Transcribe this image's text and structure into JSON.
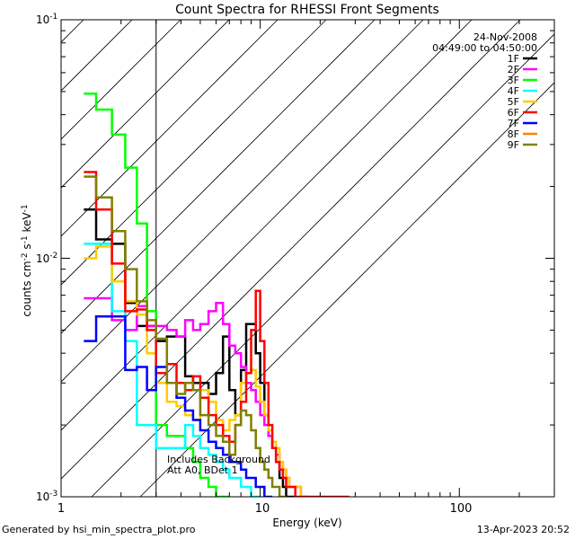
{
  "chart_data": {
    "type": "line",
    "title": "Count Spectra for RHESSI Front Segments",
    "xlabel": "Energy (keV)",
    "ylabel": "counts cm-2 s-1 keV-1",
    "x_scale": "log",
    "y_scale": "log",
    "xlim": [
      1.0,
      300.0
    ],
    "ylim": [
      0.001,
      0.1
    ],
    "x_tick_labels": [
      "1",
      "10",
      "100"
    ],
    "y_tick_labels": [
      "10-3",
      "10-2",
      "10-1"
    ],
    "date": "24-Nov-2008",
    "time_range": "04:49:00 to 04:50:00",
    "attenuator_threshold_keV": 3.0,
    "annotation_line1": "Includes Background",
    "annotation_line2": "Att A0, BDet 1",
    "edges": [
      1.3,
      1.5,
      1.8,
      2.1,
      2.4,
      2.7,
      3.0,
      3.4,
      3.8,
      4.2,
      4.6,
      5.0,
      5.5,
      6.0,
      6.5,
      7.0,
      7.5,
      8.0,
      8.5,
      9.0,
      9.5,
      10.0,
      10.5,
      11.0,
      11.5,
      12.0,
      12.5,
      13.0,
      13.5,
      14.0,
      15.0,
      16.0,
      17.0,
      18.0,
      19.0,
      20.0,
      22.0,
      24.0,
      26.0,
      28.0
    ],
    "series": [
      {
        "name": "1F",
        "color": "#000000",
        "values": [
          0.016,
          0.012,
          0.0115,
          0.0065,
          0.0052,
          0.0052,
          0.0045,
          0.0047,
          0.0047,
          0.0032,
          0.003,
          0.003,
          0.0027,
          0.0033,
          0.0047,
          0.0028,
          0.0022,
          0.0034,
          0.0053,
          0.0053,
          0.004,
          0.003,
          0.0022,
          0.0018,
          0.0016,
          0.0014,
          0.0012,
          0.0011,
          0.001,
          0.001,
          null,
          null,
          null,
          null,
          null,
          null,
          null,
          null,
          null
        ]
      },
      {
        "name": "2F",
        "color": "#ff00ff",
        "values": [
          0.0068,
          0.0068,
          0.0055,
          0.005,
          0.0063,
          0.0052,
          0.0052,
          0.005,
          0.0047,
          0.0055,
          0.005,
          0.0053,
          0.006,
          0.0065,
          0.0053,
          0.0043,
          0.004,
          0.0035,
          0.003,
          0.0028,
          0.0025,
          0.0022,
          0.002,
          0.0018,
          0.0016,
          0.0015,
          0.0014,
          0.0013,
          0.0012,
          0.0011,
          0.0011,
          0.001,
          null,
          null,
          null,
          null,
          null,
          null,
          null
        ]
      },
      {
        "name": "3F",
        "color": "#00ff00",
        "values": [
          0.049,
          0.042,
          0.033,
          0.024,
          0.014,
          0.006,
          0.002,
          0.0018,
          0.0018,
          0.0016,
          0.0014,
          0.0012,
          0.0011,
          0.001,
          0.001,
          null,
          null,
          null,
          null,
          null,
          null,
          null,
          null,
          null,
          null,
          null,
          null,
          null,
          null,
          null,
          null,
          null,
          null,
          null,
          null,
          null,
          null,
          null,
          null
        ]
      },
      {
        "name": "4F",
        "color": "#00ffff",
        "values": [
          0.0115,
          0.0115,
          0.006,
          0.0045,
          0.002,
          0.002,
          0.0016,
          0.0016,
          0.0016,
          0.002,
          0.0018,
          0.0016,
          0.0015,
          0.0014,
          0.0013,
          0.0012,
          0.0012,
          0.0011,
          0.0011,
          0.001,
          0.001,
          null,
          null,
          null,
          null,
          null,
          null,
          null,
          null,
          null,
          null,
          null,
          null,
          null,
          null,
          null,
          null,
          null,
          null
        ]
      },
      {
        "name": "5F",
        "color": "#ffcc00",
        "values": [
          0.01,
          0.0112,
          0.008,
          0.0066,
          0.0058,
          0.004,
          0.003,
          0.0025,
          0.0024,
          0.0022,
          0.0021,
          0.0028,
          0.0025,
          0.0021,
          0.0019,
          0.0021,
          0.0022,
          0.003,
          0.0033,
          0.0034,
          0.0029,
          0.0025,
          0.0022,
          0.0019,
          0.0017,
          0.0016,
          0.0014,
          0.0013,
          0.0012,
          0.0011,
          0.0011,
          0.001,
          0.001,
          null,
          null,
          null,
          null,
          null,
          null
        ]
      },
      {
        "name": "6F",
        "color": "#ff0000",
        "values": [
          0.023,
          0.016,
          0.0095,
          0.006,
          0.0061,
          0.005,
          0.0033,
          0.0036,
          0.003,
          0.0028,
          0.0032,
          0.0026,
          0.0022,
          0.002,
          0.0018,
          0.0017,
          0.002,
          0.0025,
          0.0033,
          0.005,
          0.0073,
          0.0045,
          0.003,
          0.002,
          0.0016,
          0.0014,
          0.0013,
          0.0012,
          0.0011,
          0.0011,
          0.001,
          0.001,
          0.001,
          0.001,
          0.001,
          0.001,
          0.001,
          0.001,
          0.001
        ]
      },
      {
        "name": "7F",
        "color": "#0000ff",
        "values": [
          0.0045,
          0.0057,
          0.0057,
          0.0034,
          0.0035,
          0.0028,
          0.0035,
          0.003,
          0.0026,
          0.0023,
          0.0021,
          0.0019,
          0.0017,
          0.0016,
          0.0015,
          0.0014,
          0.0014,
          0.0013,
          0.0012,
          0.0012,
          0.0011,
          0.0011,
          0.001,
          0.001,
          null,
          null,
          null,
          null,
          null,
          null,
          null,
          null,
          null,
          null,
          null,
          null,
          null,
          null,
          null
        ]
      },
      {
        "name": "8F",
        "color": "#ff8000",
        "values": []
      },
      {
        "name": "9F",
        "color": "#808000",
        "values": [
          0.022,
          0.018,
          0.013,
          0.009,
          0.0066,
          0.0055,
          0.0046,
          0.003,
          0.0027,
          0.003,
          0.0028,
          0.0022,
          0.002,
          0.0018,
          0.0017,
          0.0015,
          0.002,
          0.0023,
          0.0022,
          0.0019,
          0.0016,
          0.0014,
          0.0013,
          0.0012,
          0.0011,
          0.0011,
          0.001,
          0.001,
          null,
          null,
          null,
          null,
          null,
          null,
          null,
          null,
          null,
          null,
          null
        ]
      }
    ]
  },
  "footer": {
    "left": "Generated by hsi_min_spectra_plot.pro",
    "right": "13-Apr-2023 20:52"
  }
}
